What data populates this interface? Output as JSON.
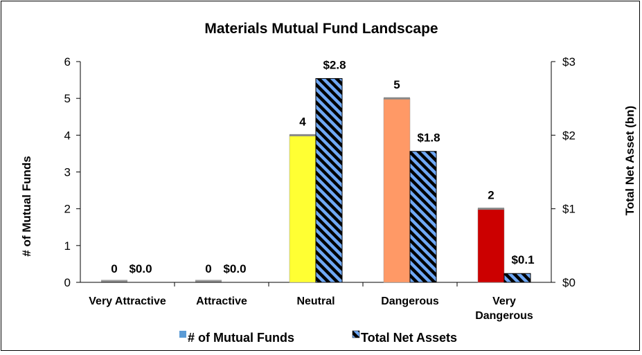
{
  "chart_data": {
    "type": "bar",
    "title": "Materials Mutual Fund Landscape",
    "categories": [
      "Very Attractive",
      "Attractive",
      "Neutral",
      "Dangerous",
      "Very Dangerous"
    ],
    "category_lines": [
      [
        "Very Attractive"
      ],
      [
        "Attractive"
      ],
      [
        "Neutral"
      ],
      [
        "Dangerous"
      ],
      [
        "Very",
        "Dangerous"
      ]
    ],
    "y_left": {
      "label": "# of Mutual Funds",
      "ylim": [
        0,
        6
      ],
      "ticks": [
        "0",
        "1",
        "2",
        "3",
        "4",
        "5",
        "6"
      ]
    },
    "y_right": {
      "label": "Total Net Asset (bn)",
      "ylim": [
        0,
        3
      ],
      "ticks": [
        "$0",
        "$1",
        "$2",
        "$3"
      ]
    },
    "series": [
      {
        "name": "# of Mutual Funds",
        "axis": "left",
        "values": [
          0,
          0,
          4,
          5,
          2
        ],
        "labels": [
          "0",
          "0",
          "4",
          "5",
          "2"
        ],
        "colors": [
          "#7f7f7f",
          "#7f7f7f",
          "#ffff33",
          "#ff9966",
          "#cc0000"
        ],
        "legend_color": "#5b9bd5"
      },
      {
        "name": "Total Net Assets",
        "axis": "right",
        "values": [
          0.0,
          0.0,
          2.77,
          1.78,
          0.12
        ],
        "labels": [
          "$0.0",
          "$0.0",
          "$2.8",
          "$1.8",
          "$0.1"
        ],
        "fill": "#6fa8f5",
        "hatch_color": "#000000"
      }
    ],
    "legend": "bottom",
    "grid": false
  }
}
